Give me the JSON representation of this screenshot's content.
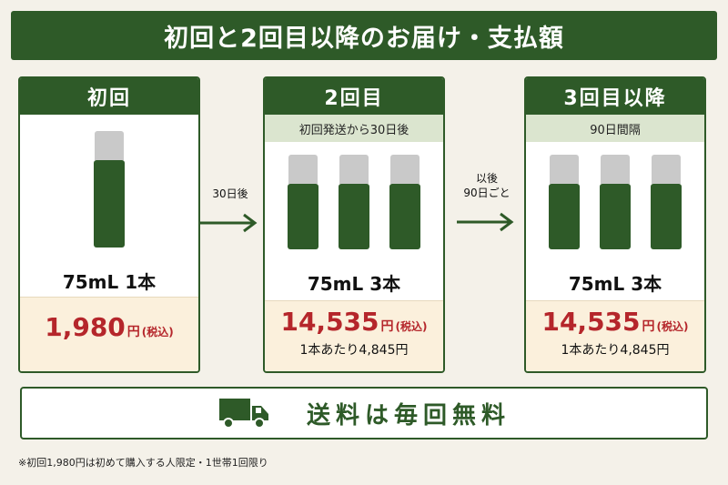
{
  "title": "初回と2回目以降のお届け・支払額",
  "cards": [
    {
      "heading": "初回",
      "subheading": "",
      "bottle_count": 1,
      "volume": "75mL 1本",
      "price": "1,980",
      "yen": "円",
      "tax": "(税込)",
      "per_unit": ""
    },
    {
      "heading": "2回目",
      "subheading": "初回発送から30日後",
      "bottle_count": 3,
      "volume": "75mL 3本",
      "price": "14,535",
      "yen": "円",
      "tax": "(税込)",
      "per_unit": "1本あたり4,845円"
    },
    {
      "heading": "3回目以降",
      "subheading": "90日間隔",
      "bottle_count": 3,
      "volume": "75mL 3本",
      "price": "14,535",
      "yen": "円",
      "tax": "(税込)",
      "per_unit": "1本あたり4,845円"
    }
  ],
  "arrows": [
    {
      "label_1": "30日後",
      "label_2": ""
    },
    {
      "label_1": "以後",
      "label_2": "90日ごと"
    }
  ],
  "shipping": {
    "text": "送料は毎回無料",
    "icon": "truck-icon"
  },
  "footnote": "※初回1,980円は初めて購入する人限定・1世帯1回限り",
  "colors": {
    "green": "#2e5a28",
    "price_red": "#b5262b",
    "price_bg": "#fbf0dc",
    "sub_bg": "#dbe5cf",
    "cap_gray": "#c9c9c9"
  }
}
